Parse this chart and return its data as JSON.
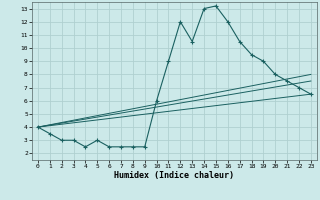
{
  "xlabel": "Humidex (Indice chaleur)",
  "xlim": [
    -0.5,
    23.5
  ],
  "ylim": [
    1.5,
    13.5
  ],
  "yticks": [
    2,
    3,
    4,
    5,
    6,
    7,
    8,
    9,
    10,
    11,
    12,
    13
  ],
  "xticks": [
    0,
    1,
    2,
    3,
    4,
    5,
    6,
    7,
    8,
    9,
    10,
    11,
    12,
    13,
    14,
    15,
    16,
    17,
    18,
    19,
    20,
    21,
    22,
    23
  ],
  "bg_color": "#cce9e9",
  "grid_color": "#b0d0d0",
  "line_color": "#1a6060",
  "main_x": [
    0,
    1,
    2,
    3,
    4,
    5,
    6,
    7,
    8,
    9,
    10,
    11,
    12,
    13,
    14,
    15,
    16,
    17,
    18,
    19,
    20,
    21,
    22,
    23
  ],
  "main_y": [
    4.0,
    3.5,
    3.0,
    3.0,
    2.5,
    3.0,
    2.5,
    2.5,
    2.5,
    2.5,
    6.0,
    9.0,
    12.0,
    10.5,
    13.0,
    13.2,
    12.0,
    10.5,
    9.5,
    9.0,
    8.0,
    7.5,
    7.0,
    6.5
  ],
  "trend1_x": [
    0,
    23
  ],
  "trend1_y": [
    4.0,
    6.5
  ],
  "trend2_x": [
    0,
    23
  ],
  "trend2_y": [
    4.0,
    7.5
  ],
  "trend3_x": [
    0,
    23
  ],
  "trend3_y": [
    4.0,
    8.0
  ]
}
